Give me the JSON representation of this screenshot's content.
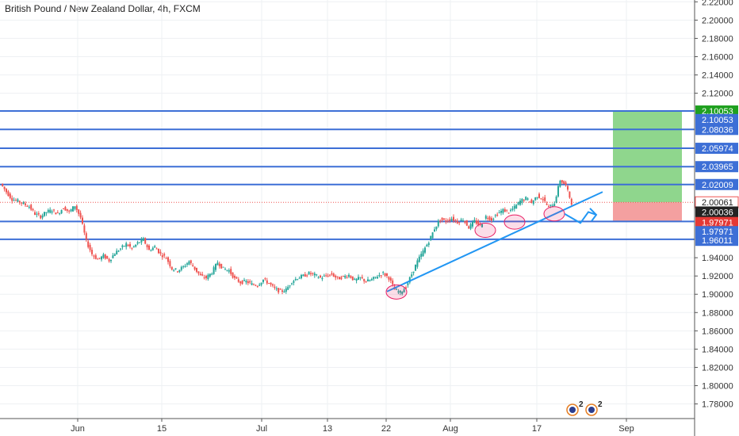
{
  "header": {
    "title": "British Pound / New Zealand Dollar, 4h, FXCM"
  },
  "colors": {
    "up": "#26a69a",
    "down": "#ef5350",
    "level": "#3d6fd6",
    "trend": "#2196f3",
    "profit": "#8fd68d",
    "loss": "#f4a0a0",
    "target_tag": "#1fa01f",
    "last_tag": "#222222",
    "stop_tag": "#e53935",
    "level_tag": "#3d6fd6"
  },
  "chart_data": {
    "type": "candlestick",
    "ylim": [
      1.764,
      2.222
    ],
    "y_ticks": [
      "2.22000",
      "2.20000",
      "2.18000",
      "2.16000",
      "2.14000",
      "2.12000",
      "1.94000",
      "1.92000",
      "1.90000",
      "1.88000",
      "1.86000",
      "1.84000",
      "1.82000",
      "1.80000",
      "1.78000"
    ],
    "x_ticks": [
      "Jun",
      "15",
      "Jul",
      "13",
      "22",
      "Aug",
      "17",
      "Sep"
    ],
    "x_tick_pos": [
      1.0,
      2.0,
      3.0,
      4.0,
      5.0,
      6.0,
      7.0,
      8.0
    ],
    "horizontal_levels": [
      2.10053,
      2.08036,
      2.05974,
      2.03965,
      2.02009,
      1.97971,
      1.96011
    ],
    "price_tags": [
      {
        "label": "2.10053",
        "value": 2.10053,
        "kind": "target"
      },
      {
        "label": "2.10053",
        "value": 2.0912,
        "kind": "level"
      },
      {
        "label": "2.08036",
        "value": 2.08036,
        "kind": "level"
      },
      {
        "label": "2.05974",
        "value": 2.05974,
        "kind": "level"
      },
      {
        "label": "2.03965",
        "value": 2.03965,
        "kind": "level"
      },
      {
        "label": "2.02009",
        "value": 2.02009,
        "kind": "level"
      },
      {
        "label": "2.00061",
        "value": 2.00061,
        "kind": "outline"
      },
      {
        "label": "2.00036",
        "value": 1.99,
        "kind": "last"
      },
      {
        "label": "1.97971",
        "value": 1.9785,
        "kind": "stop"
      },
      {
        "label": "1.97971",
        "value": 1.9685,
        "kind": "level"
      },
      {
        "label": "1.96011",
        "value": 1.959,
        "kind": "level"
      }
    ],
    "current_price": 2.00061,
    "position": {
      "entry": 2.00061,
      "target": 2.10053,
      "stop": 1.97971
    },
    "trendline": [
      {
        "x": 0.0,
        "y": 1.903
      },
      {
        "x": 1.0,
        "y": 2.012
      }
    ],
    "path_series": [
      2.021,
      2.012,
      2.004,
      2.002,
      1.999,
      1.996,
      1.988,
      1.985,
      1.99,
      1.992,
      1.988,
      1.995,
      1.99,
      1.997,
      1.984,
      1.958,
      1.944,
      1.938,
      1.942,
      1.937,
      1.945,
      1.95,
      1.955,
      1.95,
      1.956,
      1.96,
      1.948,
      1.952,
      1.944,
      1.94,
      1.928,
      1.926,
      1.93,
      1.936,
      1.928,
      1.92,
      1.918,
      1.924,
      1.935,
      1.928,
      1.926,
      1.917,
      1.913,
      1.914,
      1.911,
      1.91,
      1.916,
      1.912,
      1.906,
      1.903,
      1.905,
      1.914,
      1.918,
      1.92,
      1.923,
      1.921,
      1.918,
      1.92,
      1.922,
      1.917,
      1.919,
      1.921,
      1.915,
      1.918,
      1.914,
      1.916,
      1.92,
      1.923,
      1.918,
      1.905,
      1.902,
      1.908,
      1.922,
      1.936,
      1.947,
      1.958,
      1.972,
      1.982,
      1.98,
      1.983,
      1.979,
      1.982,
      1.973,
      1.98,
      1.975,
      1.985,
      1.982,
      1.988,
      1.992,
      1.99,
      1.995,
      2.002,
      2.005,
      2.0,
      2.008,
      2.004,
      1.995,
      2.0,
      2.025,
      2.019,
      2.0
    ],
    "markers": [
      {
        "label": "2"
      },
      {
        "label": "2"
      }
    ]
  }
}
